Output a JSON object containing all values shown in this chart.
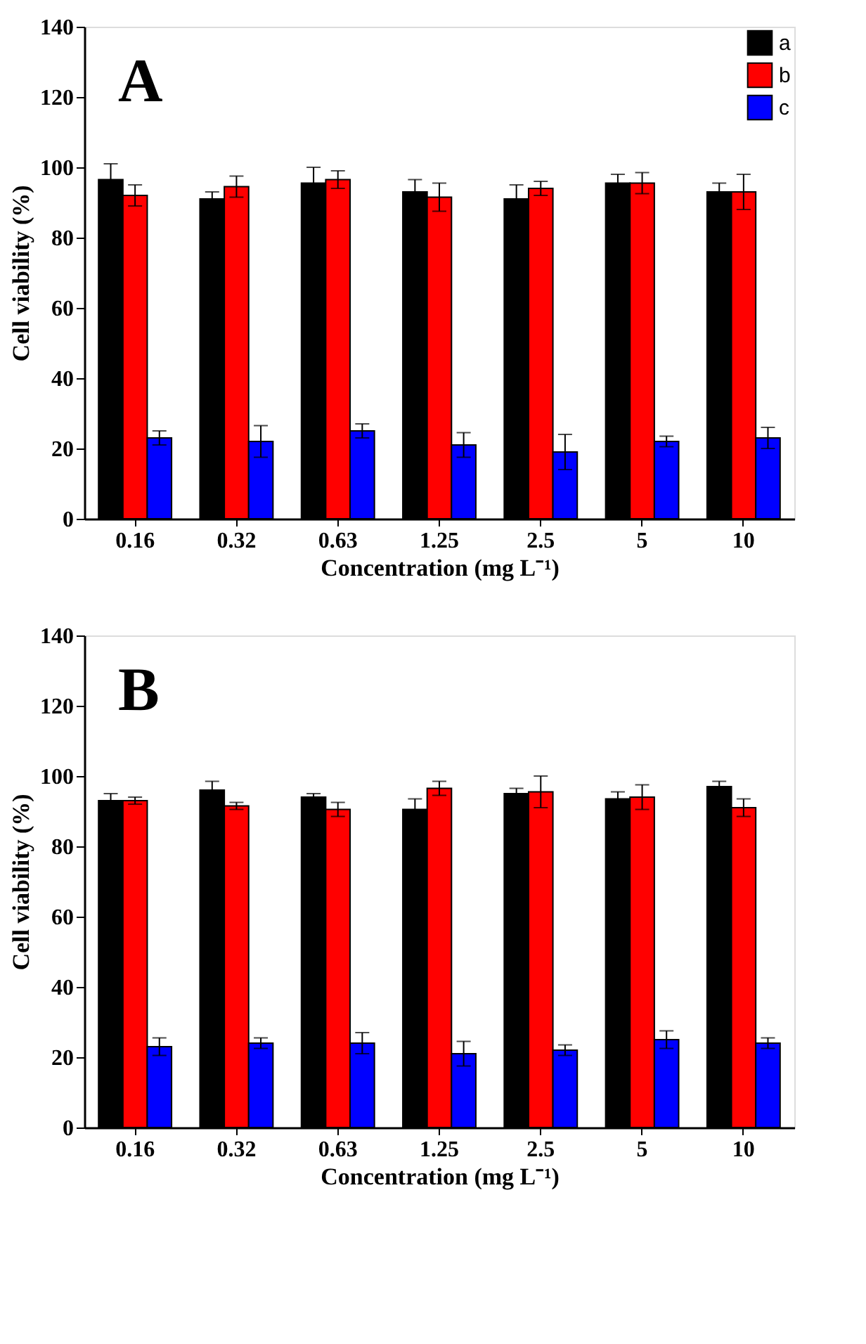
{
  "chart_data": [
    {
      "type": "bar",
      "annotations": [
        "A"
      ],
      "xlabel": "Concentration (mg L⁻¹)",
      "ylabel": "Cell viability (%)",
      "categories": [
        "0.16",
        "0.32",
        "0.63",
        "1.25",
        "2.5",
        "5",
        "10"
      ],
      "ylim": [
        0,
        140
      ],
      "yticks": [
        0,
        20,
        40,
        60,
        80,
        100,
        120,
        140
      ],
      "grid": false,
      "legend": "top right",
      "series": [
        {
          "name": "a",
          "color": "#000000",
          "values": [
            96.5,
            91,
            95.5,
            93,
            91,
            95.5,
            93
          ],
          "errors": [
            4.5,
            2,
            4.5,
            3.5,
            4,
            2.5,
            2.5
          ]
        },
        {
          "name": "b",
          "color": "#ff0000",
          "values": [
            92,
            94.5,
            96.5,
            91.5,
            94,
            95.5,
            93
          ],
          "errors": [
            3,
            3,
            2.5,
            4,
            2,
            3,
            5
          ]
        },
        {
          "name": "c",
          "color": "#0000ff",
          "values": [
            23,
            22,
            25,
            21,
            19,
            22,
            23
          ],
          "errors": [
            2,
            4.5,
            2,
            3.5,
            5,
            1.5,
            3
          ]
        }
      ]
    },
    {
      "type": "bar",
      "annotations": [
        "B"
      ],
      "xlabel": "Concentration (mg L⁻¹)",
      "ylabel": "Cell viability (%)",
      "categories": [
        "0.16",
        "0.32",
        "0.63",
        "1.25",
        "2.5",
        "5",
        "10"
      ],
      "ylim": [
        0,
        140
      ],
      "yticks": [
        0,
        20,
        40,
        60,
        80,
        100,
        120,
        140
      ],
      "grid": false,
      "legend": "top right",
      "series": [
        {
          "name": "a",
          "color": "#000000",
          "values": [
            93,
            96,
            94,
            90.5,
            95,
            93.5,
            97
          ],
          "errors": [
            2,
            2.5,
            1,
            3,
            1.5,
            2,
            1.5
          ]
        },
        {
          "name": "b",
          "color": "#ff0000",
          "values": [
            93,
            91.5,
            90.5,
            96.5,
            95.5,
            94,
            91
          ],
          "errors": [
            1,
            1,
            2,
            2,
            4.5,
            3.5,
            2.5
          ]
        },
        {
          "name": "c",
          "color": "#0000ff",
          "values": [
            23,
            24,
            24,
            21,
            22,
            25,
            24
          ],
          "errors": [
            2.5,
            1.5,
            3,
            3.5,
            1.5,
            2.5,
            1.5
          ]
        }
      ]
    }
  ]
}
